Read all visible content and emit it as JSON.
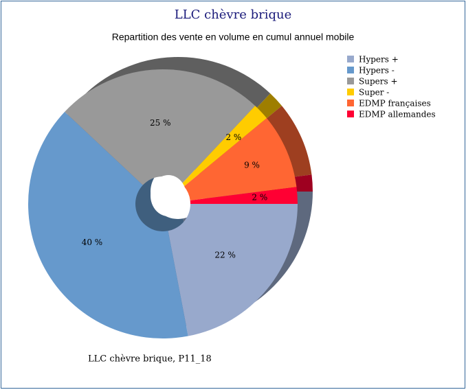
{
  "chart_data": {
    "type": "pie",
    "title": "LLC chèvre brique",
    "subtitle": "Repartition des vente en volume en cumul annuel mobile",
    "annotation": "LLC chèvre brique, P11_18",
    "categories": [
      "Hypers +",
      "Hypers -",
      "Supers +",
      "Super -",
      "EDMP françaises",
      "EDMP allemandes"
    ],
    "values": [
      22,
      40,
      25,
      2,
      9,
      2
    ],
    "value_labels": [
      "22 %",
      "40 %",
      "25 %",
      "2 %",
      "9 %",
      "2 %"
    ],
    "colors": [
      "#98a9cc",
      "#6699cc",
      "#999999",
      "#ffcc00",
      "#ff6633",
      "#ff0033"
    ],
    "legend": "right"
  }
}
